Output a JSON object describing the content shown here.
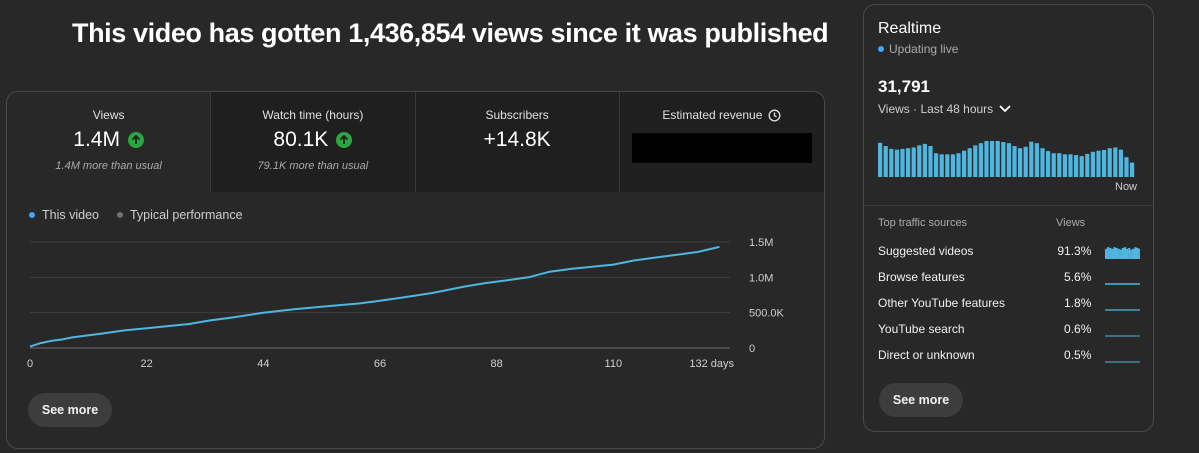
{
  "headline": "This video has gotten 1,436,854 views since it was published",
  "metrics": [
    {
      "label": "Views",
      "value": "1.4M",
      "sub": "1.4M more than usual",
      "trend": "up"
    },
    {
      "label": "Watch time (hours)",
      "value": "80.1K",
      "sub": "79.1K more than usual",
      "trend": "up"
    },
    {
      "label": "Subscribers",
      "value": "+14.8K",
      "sub": ""
    },
    {
      "label": "Estimated revenue",
      "value": "",
      "sub": "",
      "redacted": true
    }
  ],
  "legend": [
    {
      "name": "This video",
      "color": "#3ea6ff"
    },
    {
      "name": "Typical performance",
      "color": "#717171"
    }
  ],
  "see_more_label": "See more",
  "chart_data": {
    "type": "line",
    "xlabel": "",
    "ylabel": "",
    "x_ticks": [
      "0",
      "22",
      "44",
      "66",
      "88",
      "110",
      "132 days"
    ],
    "y_ticks": [
      "0",
      "500.0K",
      "1.0M",
      "1.5M"
    ],
    "xlim": [
      0,
      132
    ],
    "ylim": [
      0,
      1500000
    ],
    "series": [
      {
        "name": "This video",
        "color": "#4fb6e0",
        "x": [
          0,
          2,
          4,
          6,
          8,
          10,
          14,
          18,
          22,
          26,
          30,
          34,
          38,
          44,
          50,
          56,
          62,
          66,
          70,
          76,
          82,
          86,
          90,
          94,
          98,
          102,
          106,
          110,
          114,
          118,
          122,
          126,
          130
        ],
        "y": [
          20000,
          70000,
          100000,
          120000,
          150000,
          170000,
          210000,
          250000,
          280000,
          310000,
          340000,
          390000,
          430000,
          500000,
          550000,
          590000,
          630000,
          670000,
          710000,
          780000,
          870000,
          920000,
          960000,
          1000000,
          1080000,
          1120000,
          1150000,
          1180000,
          1240000,
          1280000,
          1320000,
          1360000,
          1430000
        ]
      }
    ],
    "grid": true,
    "legend_position": "top-left"
  },
  "realtime": {
    "title": "Realtime",
    "live_text": "Updating live",
    "count": "31,791",
    "period": "Views · Last 48 hours",
    "now_label": "Now",
    "bars": [
      0.95,
      0.86,
      0.78,
      0.76,
      0.78,
      0.8,
      0.82,
      0.88,
      0.92,
      0.86,
      0.66,
      0.63,
      0.63,
      0.63,
      0.66,
      0.73,
      0.8,
      0.88,
      0.94,
      1.0,
      1.0,
      1.0,
      0.97,
      0.94,
      0.86,
      0.8,
      0.84,
      0.98,
      0.94,
      0.8,
      0.72,
      0.66,
      0.66,
      0.63,
      0.63,
      0.61,
      0.58,
      0.64,
      0.7,
      0.73,
      0.75,
      0.8,
      0.82,
      0.76,
      0.55,
      0.4
    ],
    "bar_color": "#4fb6e0",
    "sources_header": "Top traffic sources",
    "sources_views_header": "Views",
    "sources": [
      {
        "name": "Suggested videos",
        "pct": "91.3%"
      },
      {
        "name": "Browse features",
        "pct": "5.6%"
      },
      {
        "name": "Other YouTube features",
        "pct": "1.8%"
      },
      {
        "name": "YouTube search",
        "pct": "0.6%"
      },
      {
        "name": "Direct or unknown",
        "pct": "0.5%"
      }
    ],
    "see_more_label": "See more"
  }
}
